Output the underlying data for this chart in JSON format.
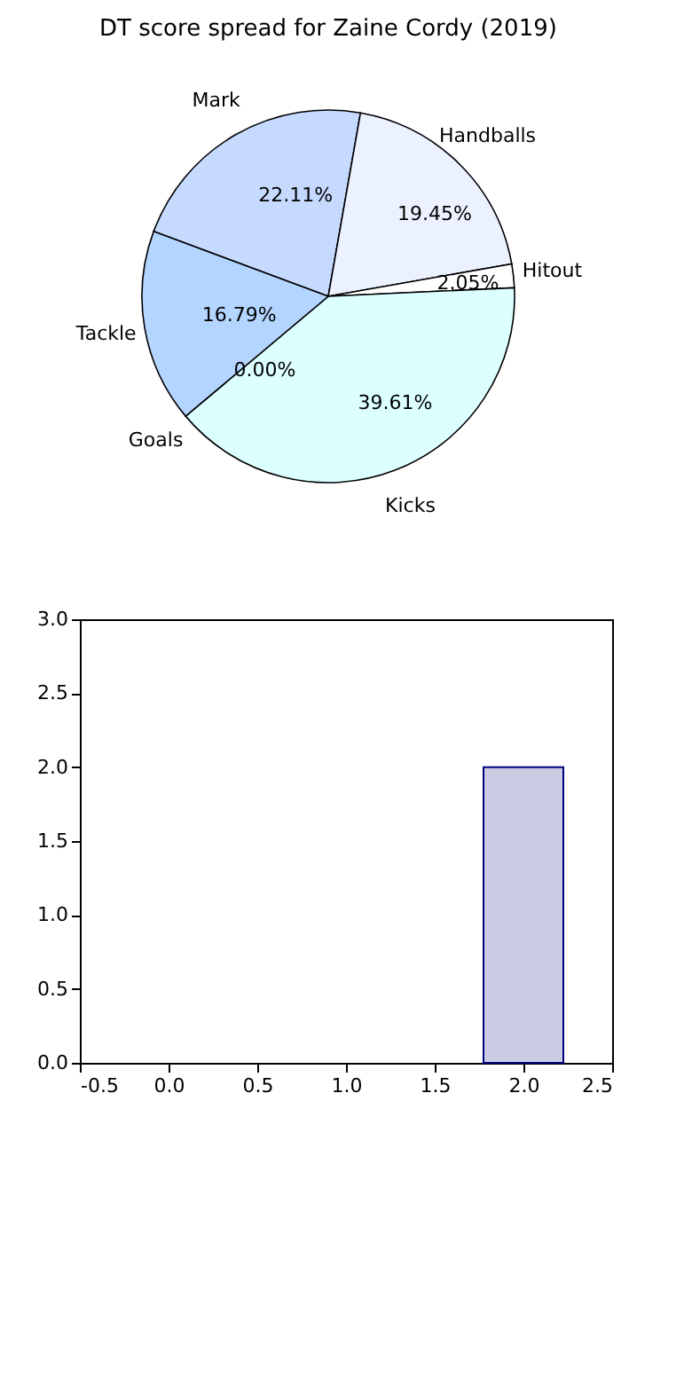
{
  "chart_data": [
    {
      "type": "pie",
      "title": "DT score spread for Zaine Cordy (2019)",
      "categories": [
        "Mark",
        "Handballs",
        "Hitout",
        "Kicks",
        "Goals",
        "Tackle"
      ],
      "values": [
        22.11,
        19.45,
        2.05,
        39.61,
        0.0,
        16.79
      ],
      "colors": [
        "#c6d9ff",
        "#ebf1ff",
        "#ffffff",
        "#dcffff",
        "#9fc4ff",
        "#b4d5ff"
      ],
      "value_labels": [
        "22.11%",
        "19.45%",
        "2.05%",
        "39.61%",
        "0.00%",
        "16.79%"
      ]
    },
    {
      "type": "bar",
      "x": [
        2.0
      ],
      "values": [
        2.0
      ],
      "color": "#cbcbe4",
      "xlim": [
        -0.5,
        2.5
      ],
      "xticks": [
        -0.5,
        {
          "value": 0,
          "label": "0.0"
        },
        0.5,
        {
          "value": 1,
          "label": "1.0"
        },
        1.5,
        {
          "value": 2,
          "label": "2.0"
        },
        2.5
      ],
      "ylim": [
        0,
        3.0
      ],
      "yticks": [
        {
          "value": 0,
          "label": "0.0"
        },
        0.5,
        {
          "value": 1,
          "label": "1.0"
        },
        1.5,
        {
          "value": 2,
          "label": "2.0"
        },
        2.5,
        {
          "value": 3,
          "label": "3.0"
        }
      ]
    }
  ]
}
